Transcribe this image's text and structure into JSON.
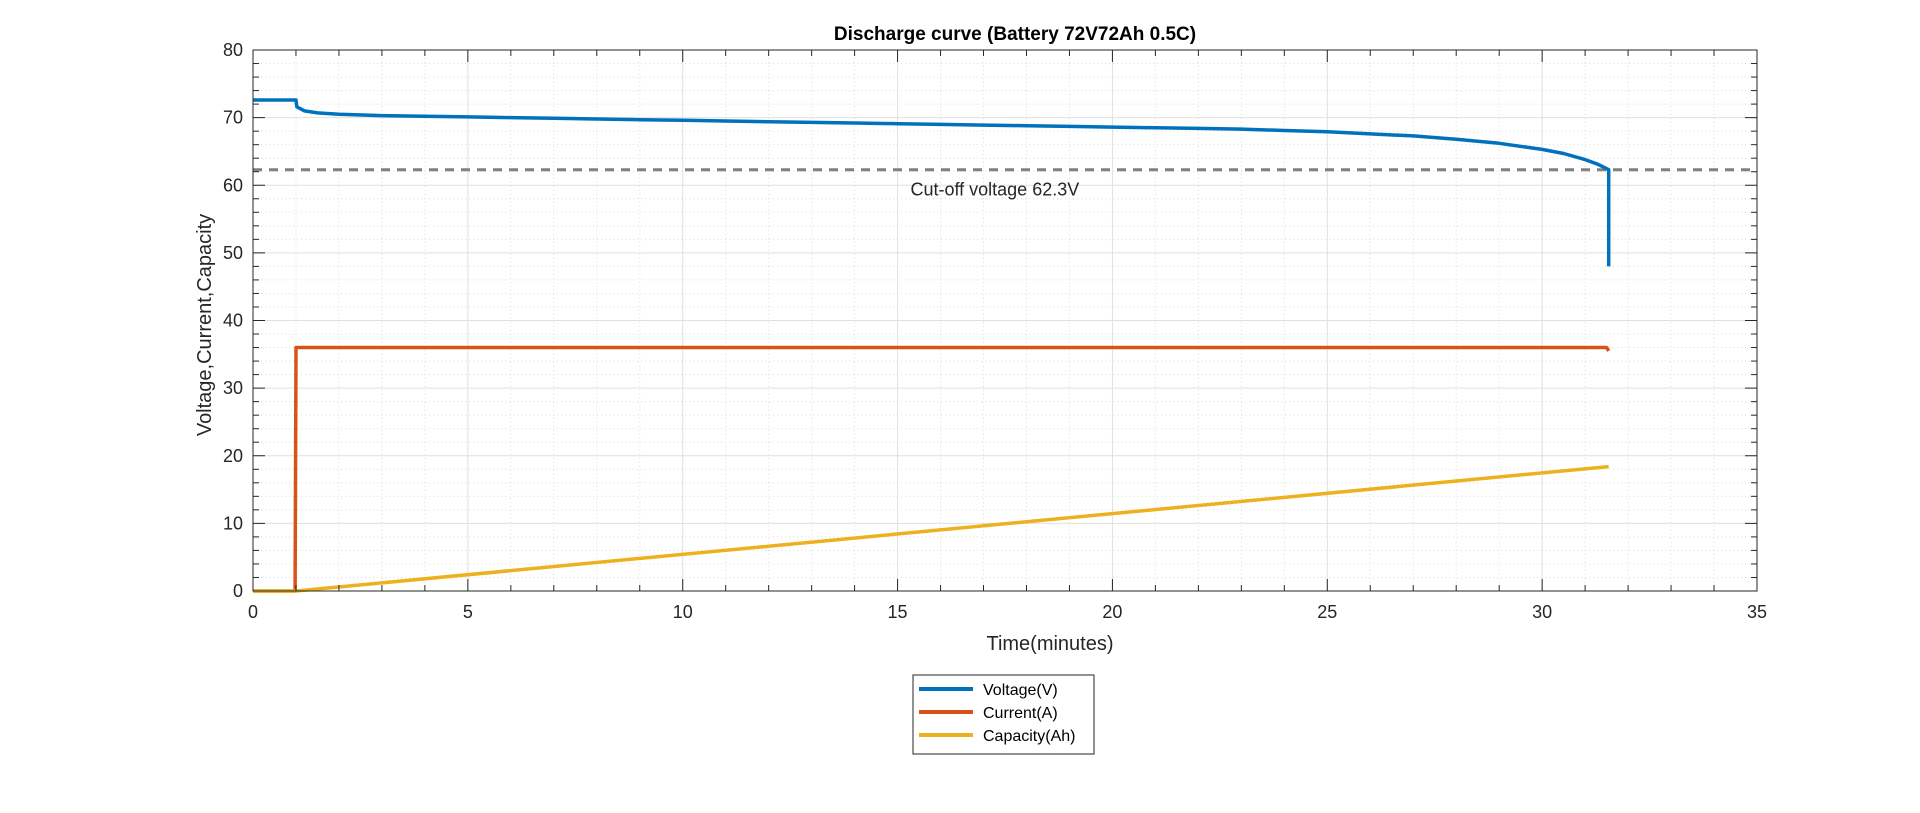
{
  "chart_data": {
    "type": "line",
    "title": "Discharge curve (Battery 72V72Ah 0.5C)",
    "xlabel": "Time(minutes)",
    "ylabel": "Voltage,Current,Capacity",
    "xlim": [
      0,
      35
    ],
    "ylim": [
      0,
      80
    ],
    "xticks": [
      0,
      5,
      10,
      15,
      20,
      25,
      30,
      35
    ],
    "yticks": [
      0,
      10,
      20,
      30,
      40,
      50,
      60,
      70,
      80
    ],
    "grid": true,
    "minor_grid": true,
    "legend_position": "bottom-center-outside",
    "series": [
      {
        "name": "Voltage(V)",
        "color": "#0072BD",
        "points": [
          [
            0,
            72.6
          ],
          [
            1.0,
            72.6
          ],
          [
            1.02,
            71.6
          ],
          [
            1.2,
            71.0
          ],
          [
            1.5,
            70.7
          ],
          [
            2,
            70.5
          ],
          [
            3,
            70.3
          ],
          [
            4,
            70.2
          ],
          [
            5,
            70.1
          ],
          [
            6,
            70.0
          ],
          [
            7,
            69.9
          ],
          [
            8,
            69.8
          ],
          [
            9,
            69.7
          ],
          [
            10,
            69.6
          ],
          [
            11,
            69.5
          ],
          [
            12,
            69.4
          ],
          [
            13,
            69.3
          ],
          [
            14,
            69.2
          ],
          [
            15,
            69.1
          ],
          [
            16,
            69.0
          ],
          [
            17,
            68.9
          ],
          [
            18,
            68.8
          ],
          [
            19,
            68.7
          ],
          [
            20,
            68.6
          ],
          [
            21,
            68.5
          ],
          [
            22,
            68.4
          ],
          [
            23,
            68.3
          ],
          [
            24,
            68.1
          ],
          [
            25,
            67.9
          ],
          [
            26,
            67.6
          ],
          [
            27,
            67.3
          ],
          [
            28,
            66.8
          ],
          [
            29,
            66.2
          ],
          [
            30,
            65.3
          ],
          [
            30.5,
            64.7
          ],
          [
            31.0,
            63.8
          ],
          [
            31.3,
            63.1
          ],
          [
            31.55,
            62.3
          ],
          [
            31.55,
            48.0
          ]
        ]
      },
      {
        "name": "Current(A)",
        "color": "#D95319",
        "points": [
          [
            0,
            0
          ],
          [
            0.98,
            0
          ],
          [
            1.0,
            36
          ],
          [
            31.5,
            36
          ],
          [
            31.55,
            35.5
          ]
        ]
      },
      {
        "name": "Capacity(Ah)",
        "color": "#EDB120",
        "points": [
          [
            0,
            0
          ],
          [
            1.0,
            0
          ],
          [
            31.55,
            18.4
          ]
        ]
      }
    ],
    "reference_lines": [
      {
        "y": 62.3,
        "label": "Cut-off voltage 62.3V",
        "label_x": 15.3,
        "color": "#808080",
        "style": "dashed"
      }
    ]
  }
}
